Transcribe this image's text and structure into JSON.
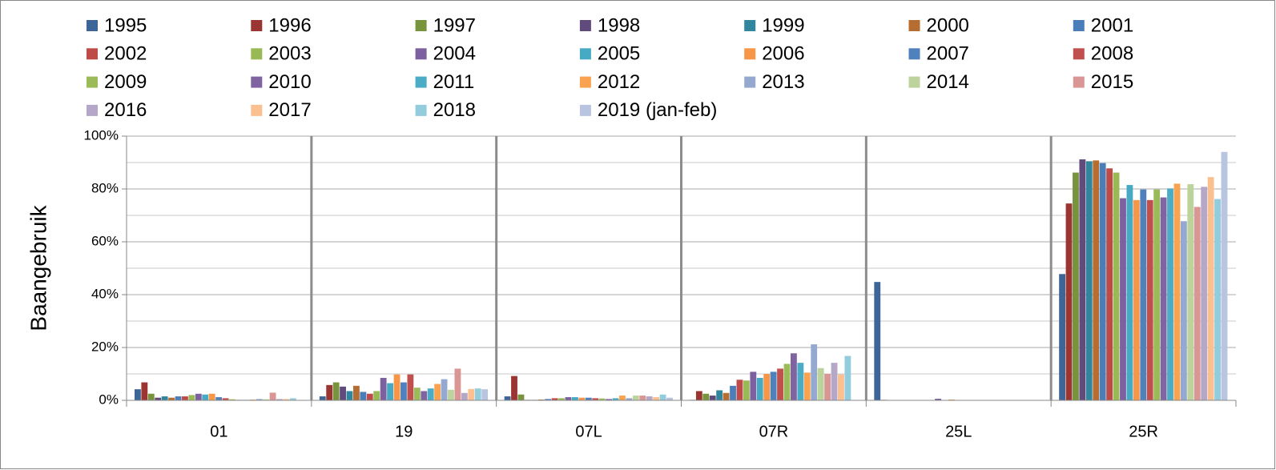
{
  "chart_data": {
    "type": "bar",
    "y_label": "Baangebruik",
    "categories": [
      "01",
      "19",
      "07L",
      "07R",
      "25L",
      "25R"
    ],
    "ylim": [
      0,
      100
    ],
    "yticks": [
      {
        "value": 0,
        "label": "0%"
      },
      {
        "value": 20,
        "label": "20%"
      },
      {
        "value": 40,
        "label": "40%"
      },
      {
        "value": 60,
        "label": "60%"
      },
      {
        "value": 80,
        "label": "80%"
      },
      {
        "value": 100,
        "label": "100%"
      }
    ],
    "yminorticks": [
      10,
      30,
      50,
      70,
      90
    ],
    "grid": true,
    "legend": "top",
    "series": [
      {
        "name": "1995",
        "color": "#3d6598",
        "values": [
          4.2,
          1.5,
          1.5,
          0.2,
          44.8,
          47.8
        ]
      },
      {
        "name": "1996",
        "color": "#9b3532",
        "values": [
          6.8,
          5.8,
          9.2,
          3.5,
          0.2,
          74.5
        ]
      },
      {
        "name": "1997",
        "color": "#77933c",
        "values": [
          2.5,
          6.8,
          2.2,
          2.5,
          0.1,
          86.2
        ]
      },
      {
        "name": "1998",
        "color": "#614b7d",
        "values": [
          1.0,
          5.2,
          0.2,
          1.8,
          0.1,
          91.2
        ]
      },
      {
        "name": "1999",
        "color": "#31859c",
        "values": [
          1.5,
          3.5,
          0.2,
          3.8,
          0.1,
          90.5
        ]
      },
      {
        "name": "2000",
        "color": "#b66d31",
        "values": [
          1.0,
          5.5,
          0.3,
          2.8,
          0.1,
          90.8
        ]
      },
      {
        "name": "2001",
        "color": "#4a7ebb",
        "values": [
          1.5,
          3.2,
          0.5,
          5.5,
          0.1,
          89.8
        ]
      },
      {
        "name": "2002",
        "color": "#be4b48",
        "values": [
          1.5,
          2.5,
          0.8,
          7.8,
          0.1,
          87.8
        ]
      },
      {
        "name": "2003",
        "color": "#98b954",
        "values": [
          2.0,
          3.5,
          0.8,
          7.5,
          0.1,
          86.2
        ]
      },
      {
        "name": "2004",
        "color": "#7d60a0",
        "values": [
          2.5,
          8.5,
          1.2,
          10.8,
          0.6,
          76.5
        ]
      },
      {
        "name": "2005",
        "color": "#46aac5",
        "values": [
          2.2,
          6.5,
          1.2,
          8.5,
          0.1,
          81.5
        ]
      },
      {
        "name": "2006",
        "color": "#f79646",
        "values": [
          2.5,
          9.8,
          1.0,
          10.0,
          0.3,
          75.8
        ]
      },
      {
        "name": "2007",
        "color": "#4f81bd",
        "values": [
          1.2,
          6.8,
          1.0,
          10.8,
          0.1,
          79.8
        ]
      },
      {
        "name": "2008",
        "color": "#c0504d",
        "values": [
          0.8,
          9.8,
          0.8,
          12.0,
          0.1,
          75.8
        ]
      },
      {
        "name": "2009",
        "color": "#9bbb59",
        "values": [
          0.4,
          4.8,
          0.7,
          13.8,
          0.1,
          79.8
        ]
      },
      {
        "name": "2010",
        "color": "#8064a2",
        "values": [
          0.2,
          3.5,
          0.5,
          17.8,
          0.1,
          76.8
        ]
      },
      {
        "name": "2011",
        "color": "#4bacc6",
        "values": [
          0.2,
          4.5,
          0.8,
          14.2,
          0.1,
          80.2
        ]
      },
      {
        "name": "2012",
        "color": "#f9a350",
        "values": [
          0.3,
          6.2,
          1.8,
          10.5,
          0.1,
          82.0
        ]
      },
      {
        "name": "2013",
        "color": "#95a9d0",
        "values": [
          0.5,
          8.0,
          0.8,
          21.2,
          0.1,
          67.8
        ]
      },
      {
        "name": "2014",
        "color": "#bcd39b",
        "values": [
          0.4,
          4.0,
          1.8,
          12.2,
          0.1,
          81.8
        ]
      },
      {
        "name": "2015",
        "color": "#d99694",
        "values": [
          2.9,
          12.0,
          1.8,
          10.0,
          0.1,
          73.2
        ]
      },
      {
        "name": "2016",
        "color": "#b4a7c7",
        "values": [
          0.5,
          2.8,
          1.5,
          14.2,
          0.1,
          80.8
        ]
      },
      {
        "name": "2017",
        "color": "#fac090",
        "values": [
          0.5,
          4.3,
          1.2,
          9.8,
          0.1,
          84.5
        ]
      },
      {
        "name": "2018",
        "color": "#93cddd",
        "values": [
          0.8,
          4.5,
          2.2,
          16.8,
          0.1,
          76.2
        ]
      },
      {
        "name": "2019 (jan-feb)",
        "color": "#b9c5e0",
        "values": [
          0,
          4.2,
          1.0,
          0,
          0,
          94.0
        ]
      }
    ]
  }
}
